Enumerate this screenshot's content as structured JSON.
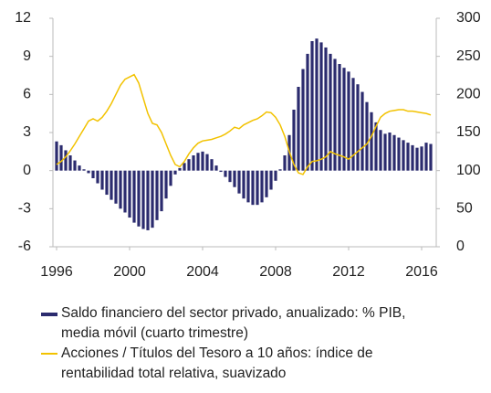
{
  "chart_data": {
    "type": "bar_line",
    "x": [
      1996,
      1996.25,
      1996.5,
      1996.75,
      1997,
      1997.25,
      1997.5,
      1997.75,
      1998,
      1998.25,
      1998.5,
      1998.75,
      1999,
      1999.25,
      1999.5,
      1999.75,
      2000,
      2000.25,
      2000.5,
      2000.75,
      2001,
      2001.25,
      2001.5,
      2001.75,
      2002,
      2002.25,
      2002.5,
      2002.75,
      2003,
      2003.25,
      2003.5,
      2003.75,
      2004,
      2004.25,
      2004.5,
      2004.75,
      2005,
      2005.25,
      2005.5,
      2005.75,
      2006,
      2006.25,
      2006.5,
      2006.75,
      2007,
      2007.25,
      2007.5,
      2007.75,
      2008,
      2008.25,
      2008.5,
      2008.75,
      2009,
      2009.25,
      2009.5,
      2009.75,
      2010,
      2010.25,
      2010.5,
      2010.75,
      2011,
      2011.25,
      2011.5,
      2011.75,
      2012,
      2012.25,
      2012.5,
      2012.75,
      2013,
      2013.25,
      2013.5,
      2013.75,
      2014,
      2014.25,
      2014.5,
      2014.75,
      2015,
      2015.25,
      2015.5,
      2015.75,
      2016,
      2016.25,
      2016.5
    ],
    "series": [
      {
        "name": "Saldo financiero del sector privado, anualizado: % PIB, media móvil (cuarto trimestre)",
        "color": "#2b2b6e",
        "kind": "bar",
        "axis": "y",
        "values": [
          2.3,
          2.0,
          1.6,
          1.2,
          0.8,
          0.4,
          0.1,
          -0.2,
          -0.6,
          -1.0,
          -1.5,
          -1.9,
          -2.3,
          -2.6,
          -3.0,
          -3.3,
          -3.7,
          -4.1,
          -4.4,
          -4.6,
          -4.7,
          -4.5,
          -3.9,
          -3.2,
          -2.2,
          -1.2,
          -0.3,
          0.2,
          0.6,
          0.9,
          1.2,
          1.4,
          1.5,
          1.3,
          0.9,
          0.4,
          -0.1,
          -0.5,
          -0.9,
          -1.3,
          -1.8,
          -2.2,
          -2.5,
          -2.7,
          -2.7,
          -2.5,
          -2.1,
          -1.5,
          -0.8,
          0.1,
          1.2,
          2.8,
          4.8,
          6.6,
          8.0,
          9.2,
          10.2,
          10.4,
          10.1,
          9.7,
          9.2,
          8.8,
          8.4,
          8.1,
          7.8,
          7.3,
          6.8,
          6.2,
          5.4,
          4.6,
          3.8,
          3.2,
          2.9,
          3.0,
          2.8,
          2.6,
          2.4,
          2.2,
          2.0,
          1.8,
          1.9,
          2.2,
          2.1
        ]
      },
      {
        "name": "Acciones / Títulos del Tesoro a 10 años: índice de rentabilidad total relativa, suavizado",
        "color": "#f2c200",
        "kind": "line",
        "axis": "y2",
        "values": [
          108,
          112,
          118,
          126,
          135,
          145,
          155,
          165,
          168,
          165,
          170,
          178,
          188,
          200,
          212,
          220,
          223,
          226,
          215,
          195,
          175,
          162,
          160,
          150,
          135,
          120,
          108,
          105,
          112,
          122,
          130,
          136,
          139,
          140,
          141,
          143,
          145,
          148,
          152,
          157,
          155,
          160,
          163,
          166,
          168,
          172,
          177,
          176,
          170,
          160,
          145,
          125,
          108,
          97,
          95,
          105,
          112,
          113,
          115,
          118,
          125,
          122,
          120,
          118,
          115,
          120,
          125,
          130,
          135,
          145,
          158,
          170,
          175,
          178,
          179,
          180,
          180,
          178,
          178,
          177,
          176,
          175,
          173
        ]
      }
    ],
    "xlim": [
      1995.8,
      2016.8
    ],
    "xticks": [
      1996,
      2000,
      2004,
      2008,
      2012,
      2016
    ],
    "ylim": [
      -6,
      12
    ],
    "yticks": [
      -6,
      -3,
      0,
      3,
      6,
      9,
      12
    ],
    "y2lim": [
      0,
      300
    ],
    "y2ticks": [
      0,
      50,
      100,
      150,
      200,
      250,
      300
    ]
  }
}
